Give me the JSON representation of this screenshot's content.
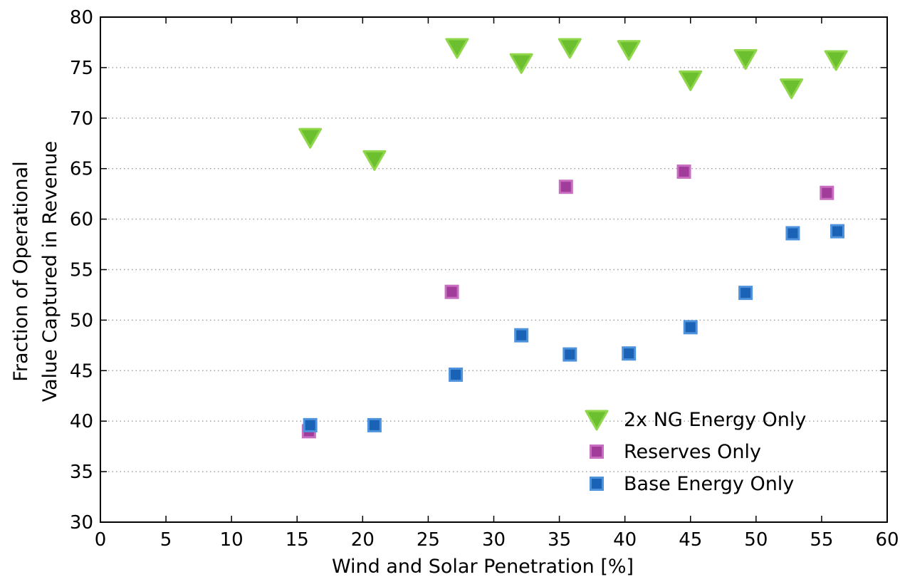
{
  "chart_data": {
    "type": "scatter",
    "title": "",
    "xlabel": "Wind and Solar Penetration [%]",
    "ylabel": [
      "Fraction of Operational",
      "Value Captured in Revenue"
    ],
    "xlim": [
      0,
      60
    ],
    "ylim": [
      30,
      80
    ],
    "x_ticks": [
      0,
      5,
      10,
      15,
      20,
      25,
      30,
      35,
      40,
      45,
      50,
      55,
      60
    ],
    "y_ticks": [
      30,
      35,
      40,
      45,
      50,
      55,
      60,
      65,
      70,
      75,
      80
    ],
    "grid": "dotted horizontal",
    "legend_position": "bottom-right",
    "series": [
      {
        "name": "2x NG Energy Only",
        "marker": "triangle-down",
        "color": "#6cbf2e",
        "edge_color": "#8fd64a",
        "points": [
          [
            16.0,
            68.0
          ],
          [
            20.9,
            65.8
          ],
          [
            27.2,
            76.9
          ],
          [
            32.1,
            75.4
          ],
          [
            35.8,
            76.9
          ],
          [
            40.3,
            76.7
          ],
          [
            45.0,
            73.7
          ],
          [
            49.2,
            75.8
          ],
          [
            52.7,
            72.9
          ],
          [
            56.1,
            75.7
          ]
        ]
      },
      {
        "name": "Reserves Only",
        "marker": "square",
        "color": "#a23c9a",
        "edge_color": "#c86ec0",
        "points": [
          [
            15.9,
            39.0
          ],
          [
            26.8,
            52.8
          ],
          [
            35.5,
            63.2
          ],
          [
            44.5,
            64.7
          ],
          [
            55.4,
            62.6
          ]
        ]
      },
      {
        "name": "Base Energy Only",
        "marker": "square",
        "color": "#1a62b5",
        "edge_color": "#4f92dc",
        "points": [
          [
            16.0,
            39.6
          ],
          [
            20.9,
            39.6
          ],
          [
            27.1,
            44.6
          ],
          [
            32.1,
            48.5
          ],
          [
            35.8,
            46.6
          ],
          [
            40.3,
            46.7
          ],
          [
            45.0,
            49.3
          ],
          [
            49.2,
            52.7
          ],
          [
            52.8,
            58.6
          ],
          [
            56.2,
            58.8
          ]
        ]
      }
    ]
  }
}
